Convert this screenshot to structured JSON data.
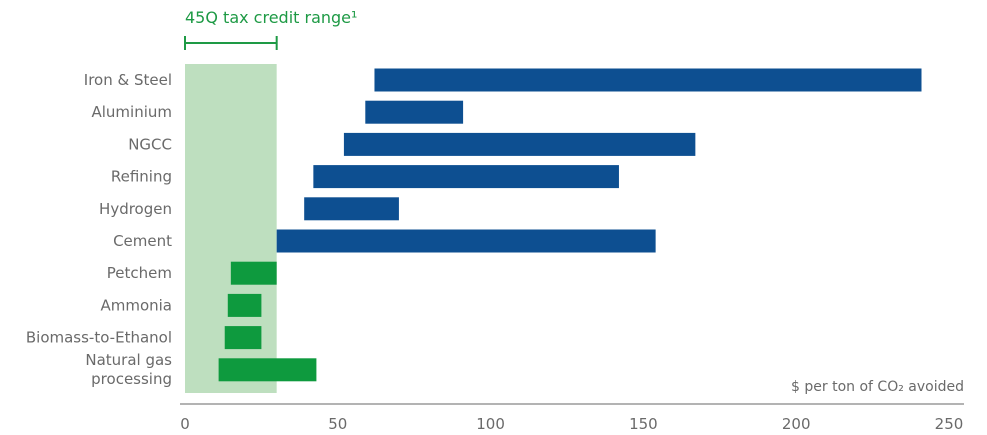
{
  "chart_data": {
    "type": "bar",
    "orientation": "horizontal",
    "categories": [
      "Iron & Steel",
      "Aluminium",
      "NGCC",
      "Refining",
      "Hydrogen",
      "Cement",
      "Petchem",
      "Ammonia",
      "Biomass-to-Ethanol",
      "Natural gas processing"
    ],
    "ranges": [
      [
        62,
        241
      ],
      [
        59,
        91
      ],
      [
        52,
        167
      ],
      [
        42,
        142
      ],
      [
        39,
        70
      ],
      [
        30,
        154
      ],
      [
        15,
        30
      ],
      [
        14,
        25
      ],
      [
        13,
        25
      ],
      [
        11,
        43
      ]
    ],
    "bar_colors": [
      "#0d4f91",
      "#0d4f91",
      "#0d4f91",
      "#0d4f91",
      "#0d4f91",
      "#0d4f91",
      "#0e9a3e",
      "#0e9a3e",
      "#0e9a3e",
      "#0e9a3e"
    ],
    "xlim": [
      0,
      250
    ],
    "xticks": [
      0,
      50,
      100,
      150,
      200,
      250
    ],
    "x_unit_label": "$ per ton of CO₂ avoided",
    "highlight_range": [
      0,
      30
    ],
    "highlight_label": "45Q tax credit range¹",
    "grid": false
  },
  "colors": {
    "high_cost_bar": "#0d4f91",
    "low_cost_bar": "#0e9a3e",
    "highlight_band": "#bedfbf",
    "highlight_text": "#1e9a45",
    "axis": "#9a9a9a",
    "text": "#6a6a6a"
  }
}
